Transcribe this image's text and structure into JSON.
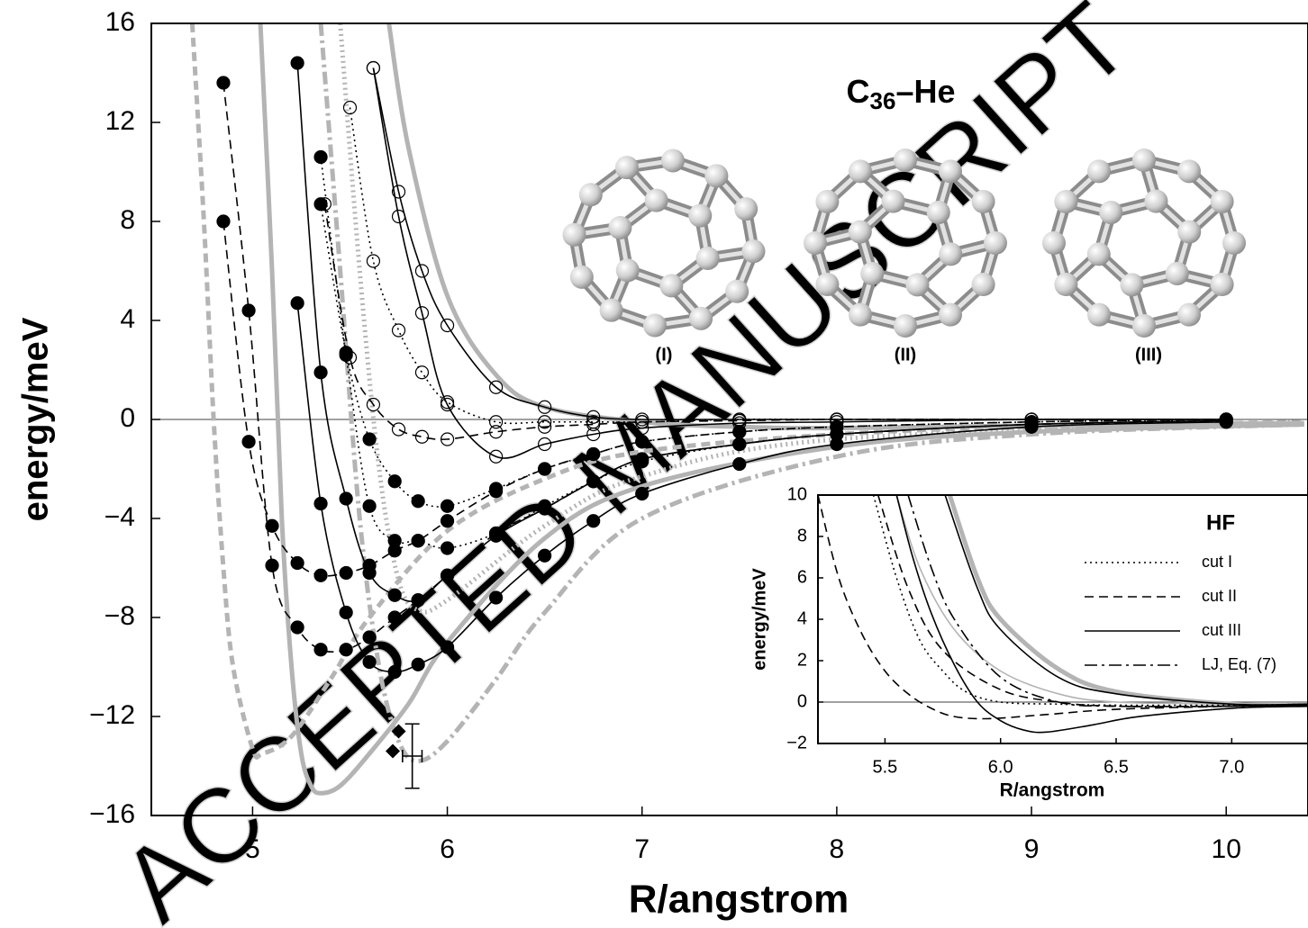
{
  "chart_data": [
    {
      "type": "line",
      "title_parts": [
        "C",
        "36",
        "–He"
      ],
      "structure_labels": [
        "(I)",
        "(II)",
        "(III)"
      ],
      "watermark": "ACCEPTED MANUSCRIPT",
      "xlabel": "R/angstrom",
      "ylabel": "energy/meV",
      "xlim": [
        4.48,
        10.42
      ],
      "ylim": [
        -16,
        16
      ],
      "xticks": [
        5,
        6,
        7,
        8,
        9,
        10
      ],
      "yticks": [
        {
          "value": -16,
          "label": "−16"
        },
        {
          "value": -12,
          "label": "−12"
        },
        {
          "value": -8,
          "label": "−8"
        },
        {
          "value": -4,
          "label": "−4"
        },
        0,
        4,
        8,
        12,
        16
      ],
      "zero_line": true,
      "series": [
        {
          "color": "#b4b4b4",
          "dash": "dashed",
          "thick": true,
          "marker": "none",
          "x": [
            4.69,
            4.75,
            4.8,
            4.85,
            4.9,
            5.0,
            5.05,
            5.2,
            5.4,
            5.6,
            6.0,
            6.5,
            7.0,
            8.0,
            9.0,
            10.4
          ],
          "values": [
            16,
            8,
            0,
            -6,
            -10,
            -13.3,
            -13.5,
            -12.8,
            -10.5,
            -8,
            -4.5,
            -2.4,
            -1.3,
            -0.6,
            -0.3,
            -0.1
          ]
        },
        {
          "color": "#b4b4b4",
          "dash": "solid",
          "thick": true,
          "marker": "none",
          "x": [
            5.04,
            5.1,
            5.15,
            5.2,
            5.25,
            5.3,
            5.35,
            5.45,
            5.6,
            5.8,
            6.0,
            6.5,
            7.0,
            8.0,
            9.0,
            10.4
          ],
          "values": [
            16,
            6,
            -4,
            -10,
            -13.5,
            -14.8,
            -15.1,
            -14.8,
            -13.5,
            -11.5,
            -9,
            -4.8,
            -2.7,
            -1.1,
            -0.5,
            -0.2
          ]
        },
        {
          "color": "#b4b4b4",
          "dash": "dashdot",
          "thick": true,
          "marker": "none",
          "x": [
            5.35,
            5.45,
            5.55,
            5.65,
            5.75,
            5.85,
            6.0,
            6.25,
            6.5,
            7.0,
            8.0,
            9.0,
            10.4
          ],
          "values": [
            16,
            6,
            -4,
            -10,
            -13,
            -13.8,
            -13,
            -10.5,
            -7.8,
            -4,
            -1.5,
            -0.6,
            -0.2
          ]
        },
        {
          "color": "#b4b4b4",
          "dash": "dotted",
          "thick": true,
          "marker": "none",
          "x": [
            5.45,
            5.55,
            5.65,
            5.75,
            5.85,
            6.0,
            6.5,
            7.0,
            8.0,
            10.4
          ],
          "values": [
            16,
            6,
            -2,
            -6.5,
            -7.7,
            -7.3,
            -4.3,
            -2.3,
            -0.8,
            -0.1
          ]
        },
        {
          "color": "#b4b4b4",
          "dash": "solid",
          "thick": true,
          "marker": "none",
          "x": [
            5.7,
            5.8,
            6.0,
            6.25,
            6.5,
            7.0,
            7.5,
            8.0,
            9.0,
            10.4
          ],
          "values": [
            16,
            11,
            5,
            1.8,
            0.5,
            -0.1,
            -0.3,
            -0.35,
            -0.25,
            -0.15
          ]
        },
        {
          "color": "#000000",
          "dash": "dashed",
          "marker": "filled",
          "x": [
            4.85,
            4.98,
            5.1,
            5.23,
            5.35,
            5.48,
            5.6,
            5.73,
            5.85,
            6.0,
            6.25,
            6.5,
            6.75,
            7.0,
            7.5,
            8.0,
            9.0,
            10.0
          ],
          "values": [
            13.6,
            4.4,
            -5.9,
            -8.4,
            -9.3,
            -9.3,
            -8.8,
            -8.0,
            -7.3,
            -6.3,
            -4.6,
            -3.6,
            -2.5,
            -1.6,
            -1.0,
            -0.6,
            -0.2,
            -0.1
          ]
        },
        {
          "color": "#000000",
          "dash": "dashed",
          "marker": "filled",
          "x": [
            4.85,
            4.98,
            5.1,
            5.23,
            5.35,
            5.48,
            5.6,
            5.73,
            5.85,
            6.0,
            6.25,
            6.5,
            6.75,
            7.0,
            7.5,
            8.0,
            9.0,
            10.0
          ],
          "values": [
            8.0,
            -0.9,
            -4.3,
            -5.8,
            -6.3,
            -6.2,
            -5.9,
            -5.3,
            -4.9,
            -4.1,
            -2.9,
            -2.0,
            -1.4,
            -0.9,
            -0.5,
            -0.3,
            -0.1,
            0
          ]
        },
        {
          "color": "#000000",
          "dash": "solid",
          "marker": "filled",
          "x": [
            5.23,
            5.35,
            5.48,
            5.6,
            5.73,
            5.85,
            6.0,
            6.25,
            6.5,
            6.75,
            7.0,
            7.5,
            8.0,
            9.0,
            10.0
          ],
          "values": [
            4.7,
            -3.4,
            -7.8,
            -9.8,
            -10.2,
            -9.9,
            -9.2,
            -7.2,
            -5.5,
            -4.1,
            -3.0,
            -1.8,
            -1.0,
            -0.3,
            -0.1
          ]
        },
        {
          "color": "#000000",
          "dash": "solid",
          "marker": "filled",
          "x": [
            5.23,
            5.35,
            5.48,
            5.6,
            5.73,
            5.85,
            6.0,
            6.25,
            6.5,
            6.75,
            7.0,
            7.5,
            8.0,
            9.0,
            10.0
          ],
          "values": [
            14.4,
            1.9,
            -3.2,
            -6.2,
            -7.1,
            -7.3,
            -6.3,
            -4.7,
            -3.6,
            -2.5,
            -1.6,
            -1.0,
            -0.6,
            -0.2,
            -0.05
          ]
        },
        {
          "color": "#000000",
          "dash": "dotted",
          "marker": "filled",
          "x": [
            5.35,
            5.48,
            5.6,
            5.73,
            5.85,
            6.0,
            6.25,
            6.5,
            6.75,
            7.0,
            7.5,
            8.0,
            9.0,
            10.0
          ],
          "values": [
            8.7,
            2.7,
            -0.8,
            -2.5,
            -3.3,
            -3.5,
            -2.8,
            -2.0,
            -1.4,
            -0.9,
            -0.5,
            -0.3,
            -0.1,
            0
          ]
        },
        {
          "color": "#000000",
          "dash": "dotted",
          "marker": "filled",
          "x": [
            5.35,
            5.48,
            5.6,
            5.73,
            5.85,
            6.0,
            6.25,
            6.5,
            6.75,
            7.0,
            7.5,
            8.0,
            9.0,
            10.0
          ],
          "values": [
            10.6,
            2.6,
            -3.5,
            -4.9,
            -4.9,
            -5.2,
            -4.6,
            -3.5,
            -2.5,
            -1.7,
            -1.0,
            -0.6,
            -0.2,
            -0.05
          ]
        },
        {
          "color": "#000000",
          "dash": "dashed",
          "marker": "open",
          "x": [
            5.37,
            5.5,
            5.62,
            5.75,
            5.87,
            6.0,
            6.25,
            6.5,
            6.75,
            7.0,
            7.5,
            8.0,
            9.0,
            10.0
          ],
          "values": [
            8.7,
            2.5,
            0.6,
            -0.4,
            -0.7,
            -0.8,
            -0.5,
            -0.3,
            -0.2,
            -0.1,
            -0.05,
            0,
            0,
            0
          ]
        },
        {
          "color": "#000000",
          "dash": "dotted",
          "marker": "open",
          "x": [
            5.5,
            5.62,
            5.75,
            5.87,
            6.0,
            6.25,
            6.5,
            6.75,
            7.0,
            7.5,
            8.0,
            9.0,
            10.0
          ],
          "values": [
            12.6,
            6.4,
            3.6,
            1.9,
            0.7,
            -0.1,
            -0.1,
            -0.1,
            -0.1,
            0,
            0,
            0,
            0
          ]
        },
        {
          "color": "#000000",
          "dash": "solid",
          "marker": "open",
          "x": [
            5.62,
            5.75,
            5.87,
            6.0,
            6.25,
            6.5,
            6.75,
            7.0,
            7.5,
            8.0,
            9.0,
            10.0
          ],
          "values": [
            14.2,
            8.2,
            4.3,
            0.6,
            -1.5,
            -1.0,
            -0.6,
            -0.35,
            -0.15,
            -0.1,
            0,
            0
          ]
        },
        {
          "color": "#000000",
          "dash": "solid",
          "marker": "open",
          "x": [
            5.62,
            5.75,
            5.87,
            6.0,
            6.25,
            6.5,
            6.75,
            7.0,
            7.5,
            8.0,
            9.0,
            10.0
          ],
          "values": [
            14.2,
            9.2,
            6.0,
            3.8,
            1.3,
            0.5,
            0.1,
            0,
            0,
            0,
            0,
            0
          ]
        },
        {
          "color": "#000000",
          "dash": "none",
          "marker": "diamond",
          "x": [
            5.75,
            5.72
          ],
          "values": [
            -12.6,
            -13.4
          ]
        },
        {
          "color": "#000000",
          "dash": "none",
          "marker": "errorbar",
          "x": [
            5.82
          ],
          "values": [
            -13.6
          ],
          "y_error": [
            1.3
          ],
          "x_error": [
            0.05
          ]
        }
      ]
    },
    {
      "type": "line",
      "title": "HF",
      "xlabel": "R/angstrom",
      "ylabel": "energy/meV",
      "xlim": [
        5.21,
        7.33
      ],
      "ylim": [
        -2,
        10
      ],
      "xticks": [
        5.5,
        {
          "value": 6,
          "label": "6.0"
        },
        6.5,
        {
          "value": 7,
          "label": "7.0"
        }
      ],
      "yticks": [
        {
          "value": -2,
          "label": "−2"
        },
        0,
        2,
        4,
        6,
        8,
        10
      ],
      "zero_line": true,
      "series": [
        {
          "color": "#b4b4b4",
          "dash": "solid",
          "thick": true,
          "marker": "none",
          "x": [
            5.78,
            5.9,
            6.0,
            6.25,
            6.5,
            7.0,
            7.33
          ],
          "values": [
            10,
            6,
            4,
            1.6,
            0.5,
            -0.1,
            -0.15
          ]
        },
        {
          "color": "#b4b4b4",
          "dash": "solid",
          "marker": "none",
          "x": [
            5.55,
            5.65,
            5.8,
            6.0,
            6.25,
            6.5,
            7.0,
            7.33
          ],
          "values": [
            10,
            6.5,
            3.5,
            1.5,
            0.4,
            0,
            -0.1,
            -0.1
          ]
        },
        {
          "name": "cut I",
          "color": "#000000",
          "dash": "dotted",
          "marker": "none",
          "x": [
            5.45,
            5.55,
            5.65,
            5.75,
            5.85,
            6.0,
            6.25,
            6.5,
            7.0,
            7.33
          ],
          "values": [
            10,
            6,
            3,
            1.5,
            0.5,
            0,
            -0.1,
            -0.15,
            -0.15,
            -0.1
          ]
        },
        {
          "name": "cut II",
          "color": "#000000",
          "dash": "dashed",
          "marker": "none",
          "x": [
            5.21,
            5.3,
            5.4,
            5.5,
            5.6,
            5.7,
            5.8,
            5.95,
            6.2,
            6.5,
            7.0,
            7.33
          ],
          "values": [
            10,
            6,
            3.3,
            1.5,
            0.4,
            -0.3,
            -0.7,
            -0.8,
            -0.6,
            -0.35,
            -0.2,
            -0.15
          ]
        },
        {
          "color": "#000000",
          "dash": "dashed",
          "marker": "none",
          "x": [
            5.47,
            5.6,
            5.75,
            6.0,
            6.25,
            6.5,
            7.0,
            7.33
          ],
          "values": [
            10,
            5.5,
            2.5,
            0.6,
            0,
            -0.2,
            -0.2,
            -0.15
          ]
        },
        {
          "name": "cut III",
          "color": "#000000",
          "dash": "solid",
          "marker": "none",
          "x": [
            5.55,
            5.62,
            5.7,
            5.8,
            5.9,
            6.0,
            6.1,
            6.2,
            6.4,
            6.6,
            7.0,
            7.33
          ],
          "values": [
            10,
            7,
            4.3,
            1.8,
            0,
            -0.9,
            -1.35,
            -1.45,
            -1.1,
            -0.7,
            -0.3,
            -0.2
          ]
        },
        {
          "color": "#000000",
          "dash": "solid",
          "marker": "none",
          "x": [
            5.76,
            5.9,
            6.0,
            6.25,
            6.5,
            7.0,
            7.33
          ],
          "values": [
            10,
            5.5,
            3.5,
            1.2,
            0.4,
            -0.1,
            -0.1
          ]
        },
        {
          "name": "LJ, Eq. (7)",
          "color": "#000000",
          "dash": "dashdot",
          "marker": "none",
          "x": [
            5.6,
            5.7,
            5.8,
            6.0,
            6.25,
            6.5,
            7.0,
            7.33
          ],
          "values": [
            10,
            6.5,
            4,
            1.2,
            0,
            -0.2,
            -0.2,
            -0.15
          ]
        }
      ]
    }
  ]
}
